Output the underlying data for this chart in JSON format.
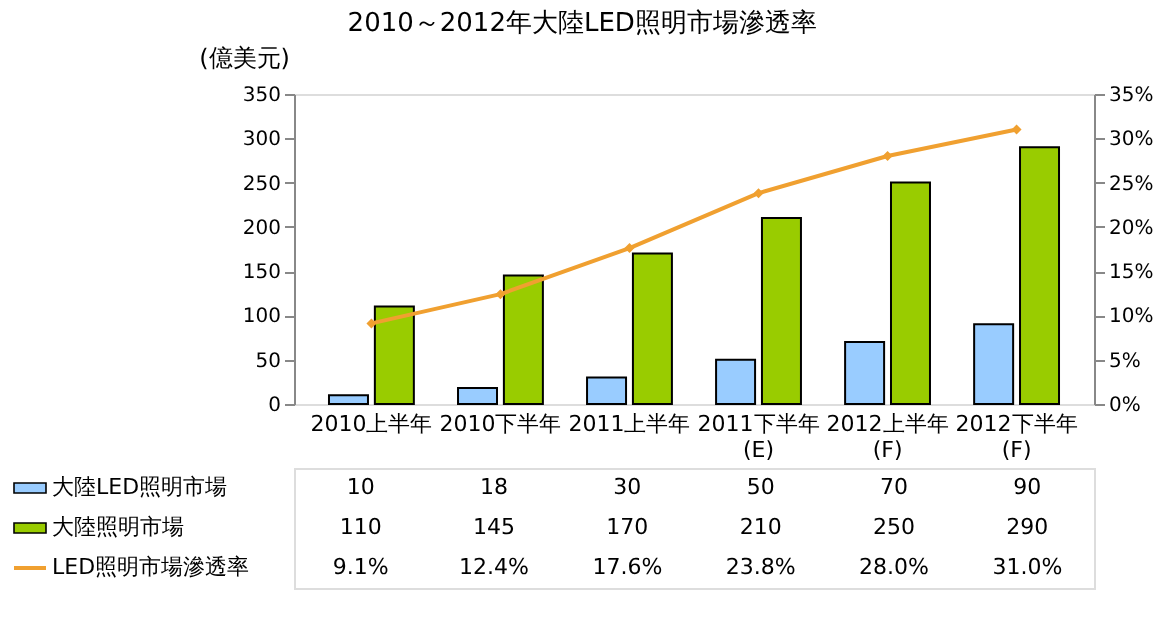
{
  "chart_data": {
    "type": "bar",
    "title": "2010～2012年大陸LED照明市場滲透率",
    "ylabel": "(億美元)",
    "categories": [
      "2010上半年",
      "2010下半年",
      "2011上半年",
      "2011下半年\n(E)",
      "2012上半年\n(F)",
      "2012下半年\n(F)"
    ],
    "series": [
      {
        "name": "大陸LED照明市場",
        "color": "#99ccff",
        "values": [
          10,
          18,
          30,
          50,
          70,
          90
        ],
        "value_labels": [
          "10",
          "18",
          "30",
          "50",
          "70",
          "90"
        ]
      },
      {
        "name": "大陸照明市場",
        "color": "#99cc00",
        "values": [
          110,
          145,
          170,
          210,
          250,
          290
        ],
        "value_labels": [
          "110",
          "145",
          "170",
          "210",
          "250",
          "290"
        ]
      },
      {
        "name": "LED照明市場滲透率",
        "color": "#f0a030",
        "type": "line",
        "axis": "y2",
        "marker": "diamond",
        "values": [
          9.1,
          12.4,
          17.6,
          23.8,
          28.0,
          31.0
        ],
        "value_labels": [
          "9.1%",
          "12.4%",
          "17.6%",
          "23.8%",
          "28.0%",
          "31.0%"
        ]
      }
    ],
    "ylim": [
      0,
      350
    ],
    "yticks": [
      0,
      50,
      100,
      150,
      200,
      250,
      300,
      350
    ],
    "y2lim": [
      0,
      35
    ],
    "y2ticks": [
      {
        "value": 0,
        "label": "0%"
      },
      {
        "value": 5,
        "label": "5%"
      },
      {
        "value": 10,
        "label": "10%"
      },
      {
        "value": 15,
        "label": "15%"
      },
      {
        "value": 20,
        "label": "20%"
      },
      {
        "value": 25,
        "label": "25%"
      },
      {
        "value": 30,
        "label": "30%"
      },
      {
        "value": 35,
        "label": "35%"
      }
    ],
    "legend": "bottom",
    "grid": false
  }
}
